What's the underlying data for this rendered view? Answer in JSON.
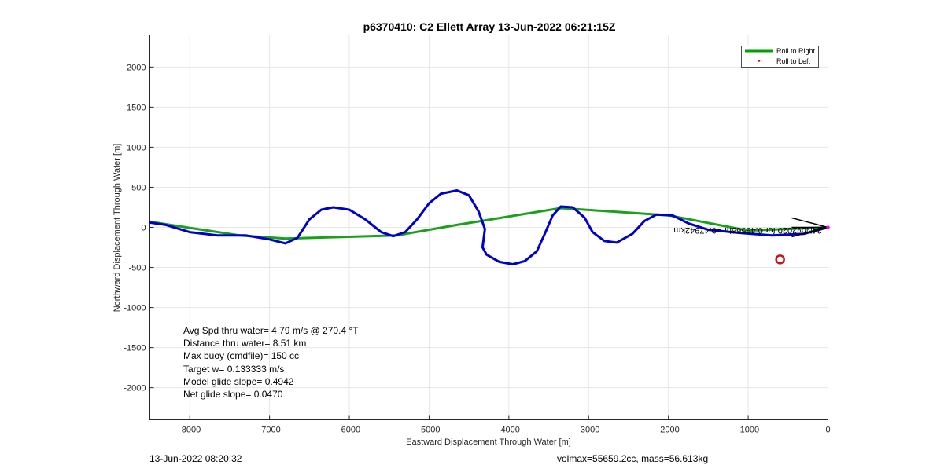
{
  "chart_data": {
    "type": "line",
    "title": "p6370410: C2 Ellett Array 13-Jun-2022 06:21:15Z",
    "xlabel": "Eastward Displacement Through Water [m]",
    "ylabel": "Northward Displacement Through Water [m]",
    "xlim": [
      -8500,
      0
    ],
    "ylim": [
      -2400,
      2400
    ],
    "xticks": [
      -8000,
      -7000,
      -6000,
      -5000,
      -4000,
      -3000,
      -2000,
      -1000,
      0
    ],
    "yticks": [
      -2000,
      -1500,
      -1000,
      -500,
      0,
      500,
      1000,
      1500,
      2000
    ],
    "grid": true,
    "legend": {
      "location": "top-right",
      "entries": [
        {
          "label": "Roll to Right",
          "color": "#00a000",
          "style": "line"
        },
        {
          "label": "Roll to Left",
          "color": "#ff0000",
          "style": "marker"
        }
      ]
    },
    "series": [
      {
        "name": "Roll to Right",
        "color": "#1aa01a",
        "x": [
          -8500,
          -7380,
          -6800,
          -5400,
          -4650,
          -3350,
          -2000,
          -1000,
          0
        ],
        "y": [
          70,
          -100,
          -140,
          -100,
          30,
          240,
          150,
          -40,
          0
        ]
      },
      {
        "color": "#0000cc",
        "x": [
          -8500,
          -8300,
          -8000,
          -7650,
          -7300,
          -7000,
          -6800,
          -6650,
          -6500,
          -6350,
          -6200,
          -6000,
          -5800,
          -5600,
          -5450,
          -5300,
          -5150,
          -5000,
          -4850,
          -4650,
          -4500,
          -4380,
          -4300,
          -4330,
          -4280,
          -4120,
          -3950,
          -3800,
          -3650,
          -3550,
          -3450,
          -3350,
          -3200,
          -3050,
          -2950,
          -2800,
          -2650,
          -2450,
          -2300,
          -2150,
          -1950,
          -1750,
          -1500,
          -1100,
          -700,
          -300,
          0
        ],
        "y": [
          60,
          30,
          -60,
          -100,
          -100,
          -150,
          -200,
          -130,
          100,
          220,
          250,
          220,
          100,
          -60,
          -110,
          -60,
          100,
          300,
          420,
          460,
          400,
          200,
          -20,
          -250,
          -340,
          -430,
          -460,
          -420,
          -300,
          -80,
          150,
          260,
          250,
          120,
          -60,
          -170,
          -190,
          -80,
          80,
          160,
          150,
          50,
          -30,
          -70,
          -100,
          -80,
          0
        ]
      }
    ],
    "annotations": {
      "heading_text": "24Nov2020 for 0.49568hr =0.47942km",
      "stats": [
        "Avg Spd thru water=  4.79 m/s @ 270.4 °T",
        "Distance thru water=  8.51 km",
        "Max buoy (cmdfile)= 150 cc",
        "Target w= 0.133333 m/s",
        "Model glide slope= 0.4942",
        "Net glide slope= 0.0470"
      ],
      "end_marker": {
        "x": -600,
        "y": -400,
        "color": "#cc1111"
      },
      "arrow_color": "#000000",
      "start_marker_color": "#ff00ff"
    }
  },
  "footer": {
    "left": "13-Jun-2022 08:20:32",
    "right": "volmax=55659.2cc, mass=56.613kg"
  }
}
